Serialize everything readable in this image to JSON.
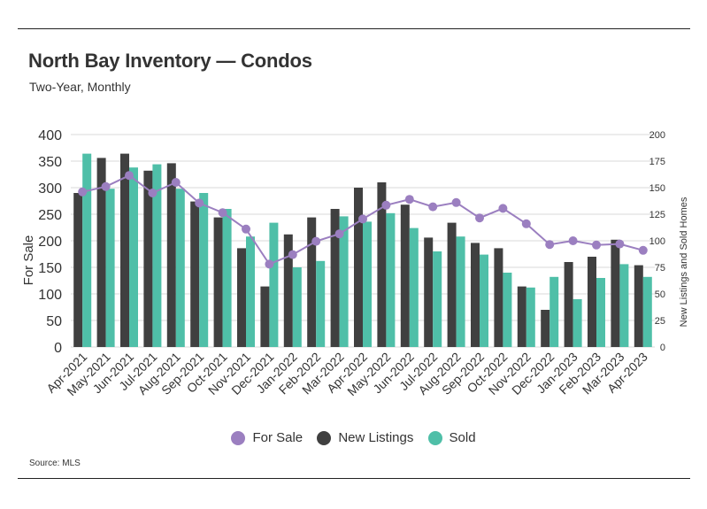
{
  "title": "North Bay Inventory — Condos",
  "subtitle": "Two-Year, Monthly",
  "source": "Source: MLS",
  "colors": {
    "for_sale": "#9b7fc0",
    "new_listings": "#404040",
    "sold": "#4fbfa8",
    "grid": "#d9d9d9",
    "text": "#333333"
  },
  "chart_data": {
    "type": "bar",
    "categories": [
      "Apr-2021",
      "May-2021",
      "Jun-2021",
      "Jul-2021",
      "Aug-2021",
      "Sep-2021",
      "Oct-2021",
      "Nov-2021",
      "Dec-2021",
      "Jan-2022",
      "Feb-2022",
      "Mar-2022",
      "Apr-2022",
      "May-2022",
      "Jun-2022",
      "Jul-2022",
      "Aug-2022",
      "Sep-2022",
      "Oct-2022",
      "Nov-2022",
      "Dec-2022",
      "Jan-2023",
      "Feb-2023",
      "Mar-2023",
      "Apr-2023"
    ],
    "ylabel": "For Sale",
    "y2label": "New Listings and Sold Homes",
    "ylim": [
      0,
      400
    ],
    "y2lim": [
      0,
      200
    ],
    "yticks": [
      "0",
      "50",
      "100",
      "150",
      "200",
      "250",
      "300",
      "350",
      "400"
    ],
    "y2ticks": [
      "0",
      "25",
      "50",
      "75",
      "100",
      "125",
      "150",
      "175",
      "200"
    ],
    "grid": true,
    "legend_position": "bottom",
    "series": [
      {
        "name": "For Sale",
        "type": "line",
        "axis": "left",
        "values": [
          292,
          302,
          323,
          290,
          310,
          271,
          253,
          222,
          156,
          174,
          199,
          213,
          241,
          267,
          278,
          264,
          272,
          243,
          261,
          232,
          193,
          200,
          192,
          194,
          182
        ]
      },
      {
        "name": "New Listings",
        "type": "bar",
        "axis": "right",
        "values": [
          145,
          178,
          182,
          166,
          173,
          137,
          122,
          93,
          57,
          106,
          122,
          130,
          150,
          155,
          134,
          103,
          117,
          98,
          93,
          57,
          35,
          80,
          85,
          101,
          77
        ]
      },
      {
        "name": "Sold",
        "type": "bar",
        "axis": "right",
        "values": [
          182,
          149,
          169,
          172,
          149,
          145,
          130,
          104,
          117,
          75,
          81,
          123,
          118,
          126,
          112,
          90,
          104,
          87,
          70,
          56,
          66,
          45,
          65,
          78,
          66
        ]
      }
    ]
  }
}
